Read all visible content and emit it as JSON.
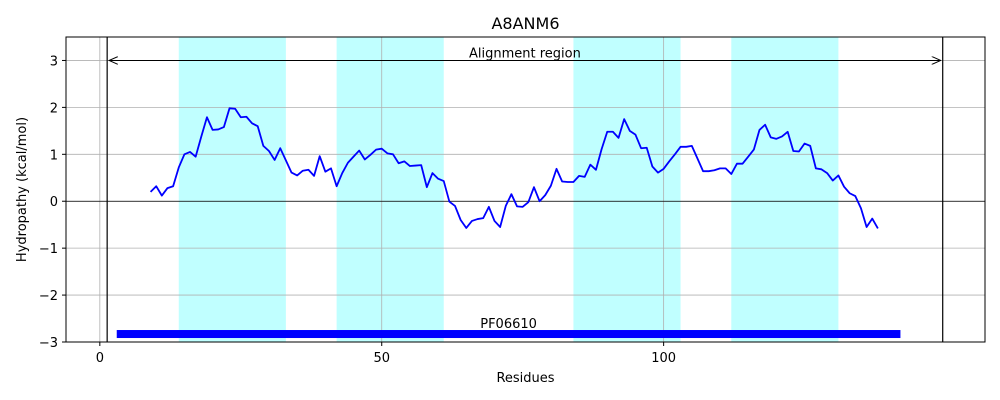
{
  "chart_data": {
    "type": "line",
    "title": "A8ANM6",
    "xlabel": "Residues",
    "ylabel": "Hydropathy (kcal/mol)",
    "xlim": [
      -6,
      157
    ],
    "ylim": [
      -3,
      3.5
    ],
    "x_ticks": [
      0,
      50,
      100
    ],
    "y_ticks": [
      -3,
      -2,
      -1,
      0,
      1,
      2,
      3
    ],
    "x_tick_labels": [
      "0",
      "50",
      "100"
    ],
    "y_tick_labels": [
      "−3",
      "−2",
      "−1",
      "0",
      "1",
      "2",
      "3"
    ],
    "grid": true,
    "colors": {
      "line": "#0000ff",
      "bar": "#0000ff",
      "band": "#c0ffff",
      "grid": "#b0b0b0",
      "axis": "#000000"
    },
    "highlight_bands": [
      {
        "start": 14,
        "end": 33
      },
      {
        "start": 42,
        "end": 61
      },
      {
        "start": 84,
        "end": 103
      },
      {
        "start": 112,
        "end": 131
      }
    ],
    "vertical_lines": [
      1.3,
      149.5
    ],
    "alignment_region": {
      "label": "Alignment region",
      "start": 1.3,
      "end": 149.5,
      "y": 3.0
    },
    "domain_bar": {
      "label": "PF06610",
      "start": 3,
      "end": 142,
      "y": -2.83
    },
    "series": [
      {
        "x": [
          9,
          10,
          11,
          12,
          13,
          14,
          15,
          16,
          17,
          18,
          19,
          20,
          21,
          22,
          23,
          24,
          25,
          26,
          27,
          28,
          29,
          30,
          31,
          32,
          33,
          34,
          35,
          36,
          37,
          38,
          39,
          40,
          41,
          42,
          43,
          44,
          45,
          46,
          47,
          48,
          49,
          50,
          51,
          52,
          53,
          54,
          55,
          56,
          57,
          58,
          59,
          60,
          61,
          62,
          63,
          64,
          65,
          66,
          67,
          68,
          69,
          70,
          71,
          72,
          73,
          74,
          75,
          76,
          77,
          78,
          79,
          80,
          81,
          82,
          83,
          84,
          85,
          86,
          87,
          88,
          89,
          90,
          91,
          92,
          93,
          94,
          95,
          96,
          97,
          98,
          99,
          100,
          101,
          102,
          103,
          104,
          105,
          106,
          107,
          108,
          109,
          110,
          111,
          112,
          113,
          114,
          115,
          116,
          117,
          118,
          119,
          120,
          121,
          122,
          123,
          124,
          125,
          126,
          127,
          128,
          129,
          130,
          131,
          132,
          133,
          134,
          135,
          136,
          137,
          138
        ],
        "values": [
          0.2,
          0.32,
          0.12,
          0.28,
          0.32,
          0.72,
          1.0,
          1.05,
          0.95,
          1.38,
          1.79,
          1.52,
          1.53,
          1.58,
          1.98,
          1.97,
          1.79,
          1.8,
          1.66,
          1.6,
          1.18,
          1.07,
          0.88,
          1.13,
          0.87,
          0.61,
          0.55,
          0.65,
          0.67,
          0.54,
          0.96,
          0.63,
          0.7,
          0.32,
          0.6,
          0.82,
          0.95,
          1.08,
          0.89,
          0.99,
          1.1,
          1.12,
          1.02,
          1.0,
          0.81,
          0.85,
          0.75,
          0.76,
          0.77,
          0.3,
          0.6,
          0.48,
          0.43,
          -0.01,
          -0.1,
          -0.4,
          -0.57,
          -0.42,
          -0.38,
          -0.36,
          -0.12,
          -0.42,
          -0.55,
          -0.1,
          0.15,
          -0.11,
          -0.12,
          -0.02,
          0.3,
          0.0,
          0.13,
          0.33,
          0.69,
          0.42,
          0.41,
          0.41,
          0.54,
          0.52,
          0.78,
          0.67,
          1.11,
          1.48,
          1.48,
          1.35,
          1.75,
          1.5,
          1.42,
          1.13,
          1.14,
          0.74,
          0.61,
          0.69,
          0.85,
          1.0,
          1.16,
          1.16,
          1.18,
          0.91,
          0.64,
          0.64,
          0.66,
          0.7,
          0.7,
          0.58,
          0.8,
          0.8,
          0.95,
          1.1,
          1.52,
          1.63,
          1.36,
          1.33,
          1.38,
          1.48,
          1.07,
          1.06,
          1.23,
          1.18,
          0.7,
          0.68,
          0.6,
          0.44,
          0.55,
          0.31,
          0.17,
          0.11,
          -0.15,
          -0.55,
          -0.37,
          -0.58
        ]
      }
    ]
  }
}
